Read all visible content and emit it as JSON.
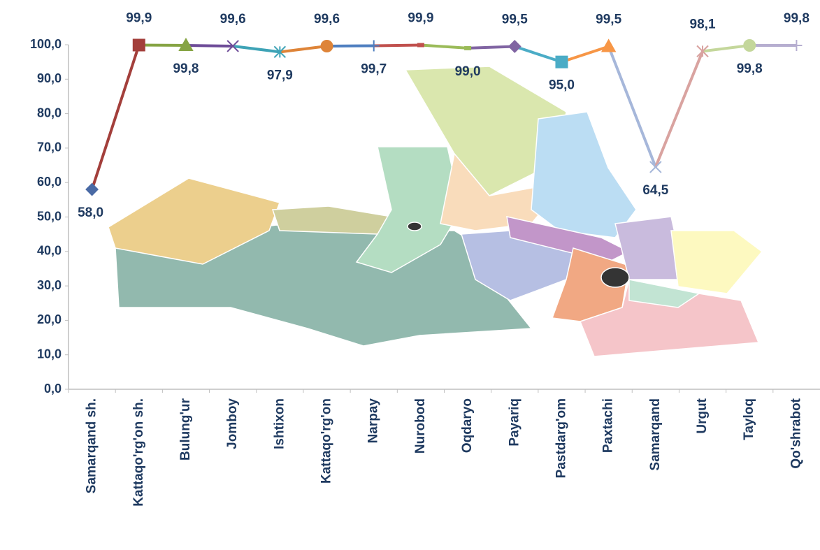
{
  "chart_data": {
    "type": "line",
    "categories": [
      "Samarqand sh.",
      "Kattaqo'rg'on sh.",
      "Bulung'ur",
      "Jomboy",
      "Ishtixon",
      "Kattaqo'rg'on",
      "Narpay",
      "Nurobod",
      "Oqdaryo",
      "Payariq",
      "Pastdarg'om",
      "Paxtachi",
      "Samarqand",
      "Urgut",
      "Tayloq",
      "Qo'shrabot"
    ],
    "values": [
      58.0,
      99.9,
      99.8,
      99.6,
      97.9,
      99.6,
      99.7,
      99.9,
      99.0,
      99.5,
      95.0,
      99.5,
      64.5,
      98.1,
      99.8,
      99.8
    ],
    "value_labels": [
      "58,0",
      "99,9",
      "99,8",
      "99,6",
      "97,9",
      "99,6",
      "99,7",
      "99,9",
      "99,0",
      "99,5",
      "95,0",
      "99,5",
      "64,5",
      "98,1",
      "99,8",
      "99,8"
    ],
    "colors": [
      "#4a6aa5",
      "#a33f3b",
      "#86a444",
      "#6e4c98",
      "#3ea3b6",
      "#de8438",
      "#4f7fc0",
      "#c0504d",
      "#9bbb59",
      "#8064a2",
      "#4bacc6",
      "#f79646",
      "#a6b7da",
      "#d9a3a0",
      "#c4d79b",
      "#b6aed0"
    ],
    "markers": [
      "diamond",
      "square",
      "triangle",
      "x",
      "star",
      "circle",
      "plus",
      "dash",
      "dash",
      "diamond",
      "square",
      "triangle",
      "x",
      "star",
      "circle",
      "plus"
    ],
    "ylim": [
      0,
      100
    ],
    "yticks": [
      {
        "value": 0,
        "label": "0,0"
      },
      {
        "value": 10,
        "label": "10,0"
      },
      {
        "value": 20,
        "label": "20,0"
      },
      {
        "value": 30,
        "label": "30,0"
      },
      {
        "value": 40,
        "label": "40,0"
      },
      {
        "value": 50,
        "label": "50,0"
      },
      {
        "value": 60,
        "label": "60,0"
      },
      {
        "value": 70,
        "label": "70,0"
      },
      {
        "value": 80,
        "label": "80,0"
      },
      {
        "value": 90,
        "label": "90,0"
      },
      {
        "value": 100,
        "label": "100,0"
      }
    ]
  }
}
